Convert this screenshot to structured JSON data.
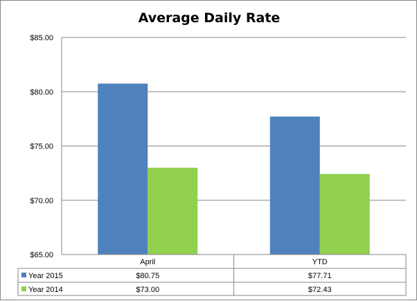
{
  "chart_data": {
    "type": "bar",
    "title": "Average Daily Rate",
    "categories": [
      "April",
      "YTD"
    ],
    "series": [
      {
        "name": "Year 2015",
        "color": "#4f81bd",
        "values": [
          80.75,
          77.71
        ],
        "labels": [
          "$80.75",
          "$77.71"
        ]
      },
      {
        "name": "Year 2014",
        "color": "#92d050",
        "values": [
          73.0,
          72.43
        ],
        "labels": [
          "$73.00",
          "$72.43"
        ]
      }
    ],
    "ylim": [
      65,
      85
    ],
    "yticks": [
      65,
      70,
      75,
      80,
      85
    ],
    "ytick_labels": [
      "$65.00",
      "$70.00",
      "$75.00",
      "$80.00",
      "$85.00"
    ],
    "grid": true,
    "legend": "data-table-left",
    "data_table": true
  }
}
